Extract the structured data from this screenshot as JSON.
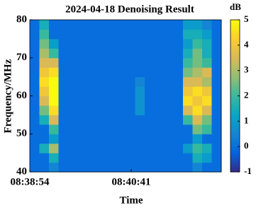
{
  "chart_data": {
    "type": "heatmap",
    "title": "2024-04-18 Denoising Result",
    "xlabel": "Time",
    "ylabel": "Frequency/MHz",
    "colorbar_label": "dB",
    "xlim": [
      0,
      202
    ],
    "xticks": [
      {
        "value": 0,
        "label": "08:38:54"
      },
      {
        "value": 107,
        "label": "08:40:41"
      }
    ],
    "ylim": [
      40,
      80
    ],
    "yticks": [
      40,
      50,
      60,
      70,
      80
    ],
    "clim": [
      -1,
      5
    ],
    "cticks": [
      -1,
      0,
      1,
      2,
      3,
      4,
      5
    ],
    "colormap": "parula",
    "z": [
      [
        0,
        0,
        0.5,
        0,
        0,
        0,
        0,
        0,
        0,
        0,
        0,
        0,
        0,
        0,
        0,
        0,
        0,
        0.5,
        0,
        0
      ],
      [
        0,
        0,
        1.5,
        0,
        0,
        0,
        0,
        0,
        0,
        0,
        0,
        0,
        0,
        0,
        0,
        0,
        0,
        1.5,
        1,
        0
      ],
      [
        0,
        1.5,
        3,
        0,
        0,
        0,
        0,
        0,
        0,
        0,
        0,
        0,
        0,
        0,
        0,
        0,
        1,
        2,
        1.5,
        0
      ],
      [
        0,
        0,
        1,
        0,
        0,
        0,
        0,
        0,
        0,
        0,
        0,
        0,
        0,
        0,
        0,
        0,
        0,
        1,
        0,
        0
      ],
      [
        0,
        0,
        2,
        0,
        0,
        0,
        0,
        0,
        0,
        0,
        0,
        0,
        0,
        0,
        0,
        0,
        0,
        2.5,
        2,
        0
      ],
      [
        0,
        1.5,
        3.5,
        0,
        0,
        0,
        0,
        0,
        0,
        0,
        0,
        0,
        0,
        0,
        0,
        0,
        2,
        3.5,
        2.5,
        0
      ],
      [
        0,
        2.5,
        4.5,
        0,
        0,
        0,
        0,
        0,
        0,
        0,
        0,
        0.8,
        0,
        0,
        0,
        0,
        3.5,
        4.5,
        3.5,
        0
      ],
      [
        0,
        3.5,
        5,
        0,
        0,
        0,
        0,
        0,
        0,
        0,
        0,
        0.8,
        0,
        0,
        0,
        0,
        4.5,
        4,
        4.5,
        0
      ],
      [
        0,
        4,
        5,
        0,
        0,
        0,
        0,
        0,
        0,
        0,
        0,
        0.8,
        0,
        0,
        0,
        0,
        4,
        4.5,
        4,
        0
      ],
      [
        0,
        4.5,
        5,
        0,
        0,
        0,
        0,
        0,
        0,
        0,
        0,
        0.5,
        0,
        0,
        0,
        0,
        3.5,
        3.5,
        3,
        0
      ],
      [
        0,
        4,
        4.5,
        0,
        0,
        0,
        0,
        0,
        0,
        0,
        0,
        0,
        0,
        0,
        0,
        0,
        2.5,
        3,
        3.5,
        0
      ],
      [
        0,
        3.5,
        3.5,
        0,
        0,
        0,
        0,
        0,
        0,
        0,
        0,
        0,
        0,
        0,
        0,
        0,
        2,
        2.5,
        2,
        0
      ],
      [
        0,
        3,
        2,
        0,
        0,
        0,
        0,
        0,
        0,
        0,
        0,
        0,
        0,
        0,
        0,
        0,
        1.5,
        2.5,
        1.5,
        0
      ],
      [
        0,
        2.5,
        1,
        0,
        0,
        0,
        0,
        0,
        0,
        0,
        0,
        0,
        0,
        0,
        0,
        0,
        1,
        2,
        1.5,
        0
      ],
      [
        0,
        2,
        0,
        0,
        0,
        0,
        0,
        0,
        0,
        0,
        0,
        0,
        0,
        0,
        0,
        0,
        1.5,
        1.5,
        1,
        0
      ],
      [
        0,
        1.5,
        0,
        0,
        0,
        0,
        0,
        0,
        0,
        0,
        0,
        0,
        0,
        0,
        0,
        0,
        1,
        1,
        0.5,
        0
      ]
    ]
  }
}
